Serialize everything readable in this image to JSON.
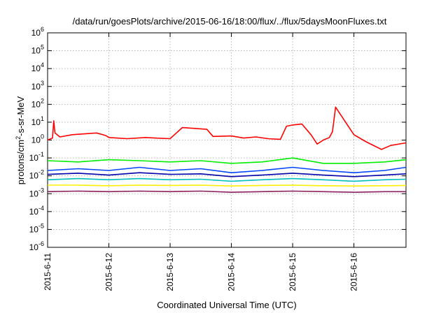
{
  "chart_data": {
    "type": "line",
    "title": "/data/run/goesPlots/archive/2015-06-16/18:00/flux/../flux/5daysMoonFluxes.txt",
    "xlabel": "Coordinated Universal Time (UTC)",
    "ylabel": {
      "base": "protons/cm",
      "sup": "2",
      "rest": "-s-sr-MeV"
    },
    "x_ticks": [
      "2015-6-11",
      "2015-6-12",
      "2015-6-13",
      "2015-6-14",
      "2015-6-15",
      "2015-6-16"
    ],
    "x_range_days": [
      0,
      5.85
    ],
    "y_scale": "log",
    "ylim": [
      1e-06,
      1000000.0
    ],
    "y_ticks": [
      {
        "base": "10",
        "exp": "-6",
        "value": -6
      },
      {
        "base": "10",
        "exp": "-5",
        "value": -5
      },
      {
        "base": "10",
        "exp": "-4",
        "value": -4
      },
      {
        "base": "10",
        "exp": "-3",
        "value": -3
      },
      {
        "base": "10",
        "exp": "-2",
        "value": -2
      },
      {
        "base": "10",
        "exp": "-1",
        "value": -1
      },
      {
        "base": "10",
        "exp": "0",
        "value": 0
      },
      {
        "base": "10",
        "exp": "1",
        "value": 1
      },
      {
        "base": "10",
        "exp": "2",
        "value": 2
      },
      {
        "base": "10",
        "exp": "3",
        "value": 3
      },
      {
        "base": "10",
        "exp": "4",
        "value": 4
      },
      {
        "base": "10",
        "exp": "5",
        "value": 5
      },
      {
        "base": "10",
        "exp": "6",
        "value": 6
      }
    ],
    "grid": true,
    "series": [
      {
        "color": "#ff0000",
        "x": [
          0,
          0.08,
          0.1,
          0.12,
          0.2,
          0.4,
          0.8,
          0.95,
          1.0,
          1.3,
          1.6,
          1.75,
          2.0,
          2.2,
          2.6,
          2.7,
          3.0,
          3.2,
          3.4,
          3.6,
          3.8,
          3.9,
          4.0,
          4.15,
          4.3,
          4.4,
          4.5,
          4.6,
          4.65,
          4.7,
          5.0,
          5.2,
          5.45,
          5.6,
          5.85
        ],
        "y": [
          1.0,
          1.3,
          12,
          2.5,
          1.5,
          2.0,
          2.5,
          1.8,
          1.4,
          1.2,
          1.4,
          1.3,
          1.2,
          5.0,
          4.0,
          1.6,
          1.7,
          1.3,
          1.5,
          1.2,
          1.1,
          6.0,
          7.0,
          8.0,
          2.0,
          0.6,
          1.0,
          1.4,
          3.0,
          70,
          2.0,
          0.8,
          0.3,
          0.5,
          0.7
        ]
      },
      {
        "color": "#00ee00",
        "x": [
          0,
          0.5,
          1.0,
          1.5,
          2.0,
          2.5,
          3.0,
          3.5,
          4.0,
          4.5,
          5.0,
          5.5,
          5.85
        ],
        "y": [
          0.07,
          0.06,
          0.08,
          0.07,
          0.06,
          0.07,
          0.05,
          0.06,
          0.1,
          0.05,
          0.05,
          0.06,
          0.08
        ]
      },
      {
        "color": "#0044ff",
        "x": [
          0,
          0.5,
          1.0,
          1.5,
          2.0,
          2.5,
          3.0,
          3.5,
          4.0,
          4.5,
          5.0,
          5.5,
          5.85
        ],
        "y": [
          0.02,
          0.025,
          0.02,
          0.03,
          0.02,
          0.025,
          0.015,
          0.02,
          0.03,
          0.02,
          0.015,
          0.02,
          0.03
        ]
      },
      {
        "color": "#0000aa",
        "x": [
          0,
          0.5,
          1.0,
          1.5,
          2.0,
          2.5,
          3.0,
          3.5,
          4.0,
          4.5,
          5.0,
          5.5,
          5.85
        ],
        "y": [
          0.012,
          0.014,
          0.011,
          0.015,
          0.012,
          0.013,
          0.009,
          0.011,
          0.014,
          0.011,
          0.009,
          0.011,
          0.013
        ]
      },
      {
        "color": "#00c0c0",
        "x": [
          0,
          0.5,
          1.0,
          1.5,
          2.0,
          2.5,
          3.0,
          3.5,
          4.0,
          4.5,
          5.0,
          5.5,
          5.85
        ],
        "y": [
          0.006,
          0.007,
          0.006,
          0.007,
          0.006,
          0.0065,
          0.005,
          0.006,
          0.007,
          0.006,
          0.005,
          0.006,
          0.0065
        ]
      },
      {
        "color": "#ffee00",
        "x": [
          0,
          0.5,
          1.0,
          1.5,
          2.0,
          2.5,
          3.0,
          3.5,
          4.0,
          4.5,
          5.0,
          5.5,
          5.85
        ],
        "y": [
          0.003,
          0.003,
          0.0028,
          0.003,
          0.0029,
          0.003,
          0.0027,
          0.0029,
          0.003,
          0.0028,
          0.0027,
          0.0028,
          0.0029
        ]
      },
      {
        "color": "#8b2060",
        "x": [
          0,
          0.5,
          1.0,
          1.5,
          2.0,
          2.5,
          3.0,
          3.5,
          4.0,
          4.5,
          5.0,
          5.5,
          5.85
        ],
        "y": [
          0.0013,
          0.0014,
          0.0013,
          0.0014,
          0.0013,
          0.0014,
          0.0012,
          0.0013,
          0.0014,
          0.0013,
          0.0012,
          0.0013,
          0.0013
        ]
      }
    ]
  }
}
